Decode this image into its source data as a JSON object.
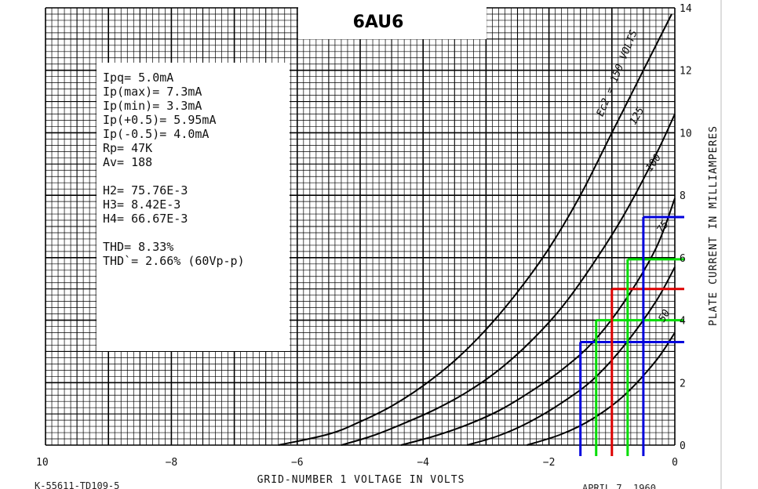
{
  "chart_data": {
    "type": "line",
    "title": "6AU6",
    "xlabel": "GRID-NUMBER 1 VOLTAGE IN VOLTS",
    "ylabel": "PLATE CURRENT IN MILLIAMPERES",
    "xlim": [
      -10,
      0
    ],
    "ylim": [
      0,
      14
    ],
    "x_ticks": [
      {
        "value": -10,
        "label": "10"
      },
      {
        "value": -8,
        "label": "−8"
      },
      {
        "value": -6,
        "label": "−6"
      },
      {
        "value": -4,
        "label": "−4"
      },
      {
        "value": -2,
        "label": "−2"
      },
      {
        "value": 0,
        "label": "0"
      }
    ],
    "y_ticks": [
      {
        "value": 0,
        "label": "0"
      },
      {
        "value": 2,
        "label": "2"
      },
      {
        "value": 4,
        "label": "4"
      },
      {
        "value": 6,
        "label": "6"
      },
      {
        "value": 8,
        "label": "8"
      },
      {
        "value": 10,
        "label": "10"
      },
      {
        "value": 12,
        "label": "12"
      },
      {
        "value": 14,
        "label": "14"
      }
    ],
    "grid": true,
    "series": [
      {
        "name": "Ec2 = 150 VOLTS",
        "x": [
          -6.3,
          -5.5,
          -5.0,
          -4.5,
          -4.0,
          -3.5,
          -3.0,
          -2.5,
          -2.0,
          -1.5,
          -1.0,
          -0.5,
          -0.05
        ],
        "y": [
          0.0,
          0.35,
          0.75,
          1.25,
          1.9,
          2.7,
          3.7,
          4.9,
          6.3,
          8.0,
          10.0,
          12.0,
          13.8
        ]
      },
      {
        "name": "125",
        "x": [
          -5.3,
          -4.8,
          -4.3,
          -3.8,
          -3.3,
          -2.8,
          -2.3,
          -1.8,
          -1.3,
          -0.8,
          -0.3,
          0.0
        ],
        "y": [
          0.0,
          0.3,
          0.7,
          1.15,
          1.7,
          2.4,
          3.3,
          4.4,
          5.8,
          7.4,
          9.3,
          10.6
        ]
      },
      {
        "name": "100",
        "x": [
          -4.35,
          -3.8,
          -3.3,
          -2.8,
          -2.3,
          -1.8,
          -1.3,
          -0.8,
          -0.3,
          0.0
        ],
        "y": [
          0.0,
          0.3,
          0.65,
          1.1,
          1.7,
          2.4,
          3.3,
          4.6,
          6.3,
          7.9
        ]
      },
      {
        "name": "75",
        "x": [
          -3.3,
          -2.8,
          -2.3,
          -1.8,
          -1.3,
          -0.8,
          -0.3,
          0.0
        ],
        "y": [
          0.0,
          0.3,
          0.75,
          1.35,
          2.1,
          3.2,
          4.6,
          5.7
        ]
      },
      {
        "name": "50",
        "x": [
          -2.35,
          -1.8,
          -1.3,
          -0.8,
          -0.3,
          0.0
        ],
        "y": [
          0.0,
          0.35,
          0.85,
          1.6,
          2.7,
          3.6
        ]
      }
    ],
    "curve_labels": [
      "Ec2 = 150 VOLTS",
      "125",
      "100",
      "75",
      "50"
    ],
    "overlay_lines": [
      {
        "color": "#0000dd",
        "x": -1.5,
        "y": 3.3
      },
      {
        "color": "#00dd00",
        "x": -1.25,
        "y": 4.0
      },
      {
        "color": "#dd0000",
        "x": -1.0,
        "y": 5.0
      },
      {
        "color": "#00dd00",
        "x": -0.75,
        "y": 5.95
      },
      {
        "color": "#0000dd",
        "x": -0.5,
        "y": 7.3
      }
    ],
    "annotations": [
      "K-55611-TD109-5",
      "APRIL 7, 1960"
    ]
  },
  "notes": [
    "Ipq= 5.0mA",
    "Ip(max)= 7.3mA",
    "Ip(min)= 3.3mA",
    "Ip(+0.5)= 5.95mA",
    "Ip(-0.5)= 4.0mA",
    "Rp= 47K",
    "Av= 188",
    "",
    "H2= 75.76E-3",
    "H3= 8.42E-3",
    "H4= 66.67E-3",
    "",
    "THD= 8.33%",
    "THD`= 2.66% (60Vp-p)"
  ]
}
